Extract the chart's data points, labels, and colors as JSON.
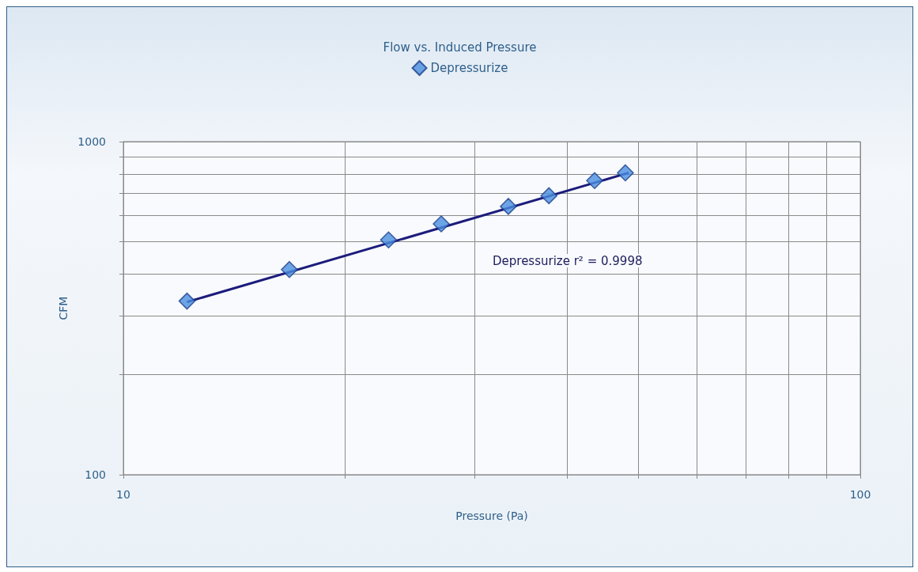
{
  "chart_data": {
    "type": "scatter",
    "title": "Flow vs. Induced Pressure",
    "xlabel": "Pressure (Pa)",
    "ylabel": "CFM",
    "log": "xy",
    "xlim": [
      10,
      100
    ],
    "ylim": [
      100,
      1000
    ],
    "xticks": [
      10,
      {
        "value": 20,
        "label": null
      },
      {
        "value": 30,
        "label": null
      },
      {
        "value": 40,
        "label": null
      },
      {
        "value": 50,
        "label": null
      },
      {
        "value": 60,
        "label": null
      },
      {
        "value": 70,
        "label": null
      },
      {
        "value": 80,
        "label": null
      },
      {
        "value": 90,
        "label": null
      },
      100
    ],
    "yticks": [
      100,
      {
        "value": 200,
        "label": null
      },
      {
        "value": 300,
        "label": null
      },
      {
        "value": 400,
        "label": null
      },
      {
        "value": 500,
        "label": null
      },
      {
        "value": 600,
        "label": null
      },
      {
        "value": 700,
        "label": null
      },
      {
        "value": 800,
        "label": null
      },
      {
        "value": 900,
        "label": null
      },
      1000
    ],
    "grid": true,
    "legend": "top",
    "marker": "diamond",
    "series": [
      {
        "name": "Depressurize",
        "color": "#4a8ee0",
        "x": [
          12.2,
          16.8,
          22.9,
          27.0,
          33.3,
          37.8,
          43.6,
          48.0
        ],
        "values": [
          332,
          413,
          507,
          566,
          639,
          688,
          764,
          806
        ]
      },
      {
        "type": "line",
        "color": "#1c1c7c",
        "line_style": "solid",
        "marker": "none",
        "x": [
          12.2,
          48.5
        ],
        "values": [
          330,
          806
        ]
      }
    ],
    "annotations": [
      "Depressurize r² = 0.9998"
    ]
  }
}
